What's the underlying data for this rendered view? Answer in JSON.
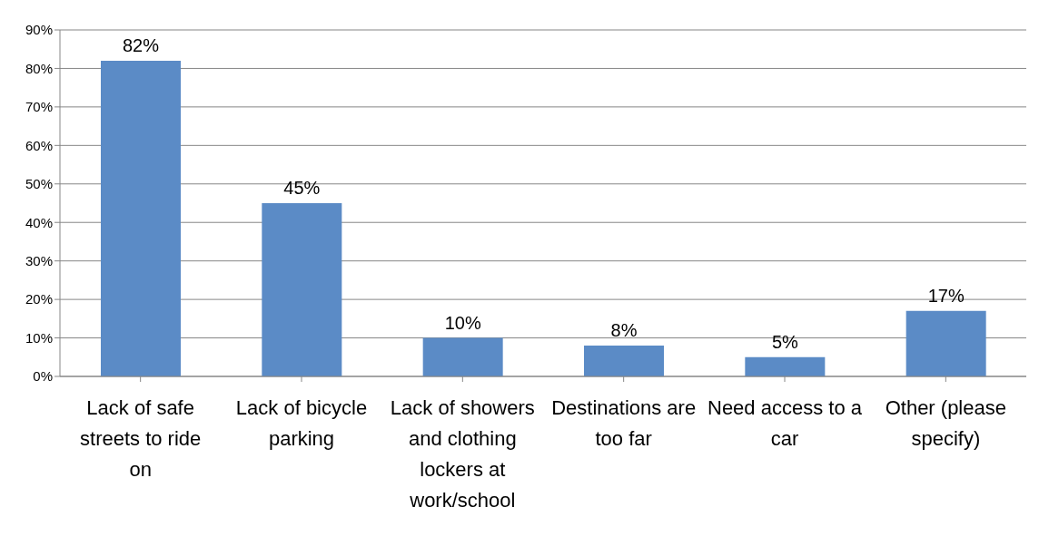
{
  "chart_data": {
    "type": "bar",
    "categories": [
      "Lack of safe streets to ride on",
      "Lack of bicycle parking",
      "Lack of showers and clothing lockers at work/school",
      "Destinations are too far",
      "Need access to a car",
      "Other (please specify)"
    ],
    "values": [
      82,
      45,
      10,
      8,
      5,
      17
    ],
    "value_labels": [
      "82%",
      "45%",
      "10%",
      "8%",
      "5%",
      "17%"
    ],
    "color": "#5b8bc6",
    "ylim": [
      0,
      90
    ],
    "yticks": [
      {
        "value": 0,
        "label": "0%"
      },
      {
        "value": 10,
        "label": "10%"
      },
      {
        "value": 20,
        "label": "20%"
      },
      {
        "value": 30,
        "label": "30%"
      },
      {
        "value": 40,
        "label": "40%"
      },
      {
        "value": 50,
        "label": "50%"
      },
      {
        "value": 60,
        "label": "60%"
      },
      {
        "value": 70,
        "label": "70%"
      },
      {
        "value": 80,
        "label": "80%"
      },
      {
        "value": 90,
        "label": "90%"
      }
    ],
    "grid": "y",
    "legend": false
  }
}
